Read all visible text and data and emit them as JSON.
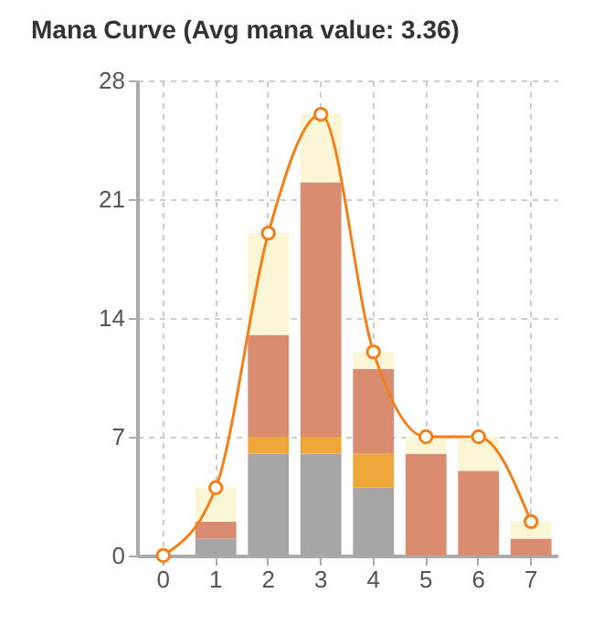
{
  "chart_data": {
    "type": "bar",
    "title": "Mana Curve (Avg mana value: 3.36)",
    "categories": [
      "0",
      "1",
      "2",
      "3",
      "4",
      "5",
      "6",
      "7"
    ],
    "stacked": true,
    "series": [
      {
        "color": "#a6a6a6",
        "values": [
          0,
          1,
          6,
          6,
          4,
          0,
          0,
          0
        ]
      },
      {
        "color": "#f0a73a",
        "values": [
          0,
          0,
          1,
          1,
          2,
          0,
          0,
          0
        ]
      },
      {
        "color": "#d98c70",
        "values": [
          0,
          1,
          6,
          15,
          5,
          6,
          5,
          1
        ]
      },
      {
        "color": "#fbf6d5",
        "values": [
          0,
          2,
          6,
          4,
          1,
          1,
          2,
          1
        ]
      },
      {
        "type": "line",
        "color": "#f57f17",
        "values": [
          0,
          4,
          19,
          26,
          12,
          7,
          7,
          2
        ]
      }
    ],
    "ylim": [
      0,
      28
    ],
    "yticks": [
      0,
      7,
      14,
      21,
      28
    ],
    "grid": true,
    "marker": "circle",
    "line_style": "solid"
  }
}
